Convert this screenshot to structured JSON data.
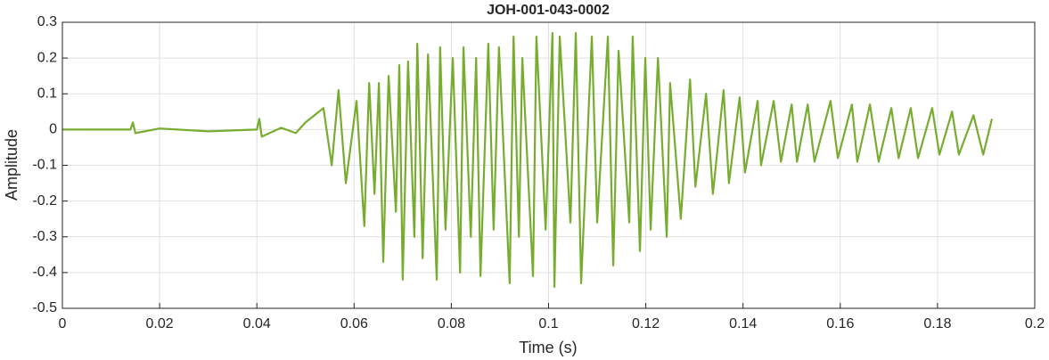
{
  "chart_data": {
    "type": "line",
    "title": "JOH-001-043-0002",
    "xlabel": "Time (s)",
    "ylabel": "Amplitude",
    "color": "#77ac30",
    "grid": true,
    "xlim": [
      0,
      0.2
    ],
    "xticks": [
      0,
      0.02,
      0.04,
      0.06,
      0.08,
      0.1,
      0.12,
      0.14,
      0.16,
      0.18,
      0.2
    ],
    "ylim": [
      -0.5,
      0.3
    ],
    "yticks": [
      -0.5,
      -0.4,
      -0.3,
      -0.2,
      -0.1,
      0,
      0.1,
      0.2,
      0.3
    ],
    "x": [
      0,
      0.014,
      0.0145,
      0.015,
      0.02,
      0.03,
      0.04,
      0.0405,
      0.041,
      0.045,
      0.048,
      0.05,
      0.0537,
      0.0554,
      0.0568,
      0.0583,
      0.0605,
      0.0621,
      0.0631,
      0.0642,
      0.0651,
      0.066,
      0.0671,
      0.0686,
      0.0693,
      0.07,
      0.0711,
      0.0724,
      0.073,
      0.0741,
      0.0752,
      0.077,
      0.0777,
      0.0788,
      0.0803,
      0.0818,
      0.0825,
      0.084,
      0.0851,
      0.086,
      0.0876,
      0.0887,
      0.0898,
      0.092,
      0.0928,
      0.0939,
      0.0946,
      0.0968,
      0.0975,
      0.0994,
      0.1008,
      0.1012,
      0.1023,
      0.1045,
      0.1056,
      0.1067,
      0.1089,
      0.11,
      0.1122,
      0.1133,
      0.1144,
      0.1166,
      0.1173,
      0.1188,
      0.1199,
      0.121,
      0.1225,
      0.1243,
      0.125,
      0.1272,
      0.1291,
      0.1302,
      0.1324,
      0.1338,
      0.136,
      0.1371,
      0.1393,
      0.1404,
      0.143,
      0.1437,
      0.1463,
      0.1478,
      0.15,
      0.1511,
      0.1533,
      0.1547,
      0.158,
      0.1595,
      0.1624,
      0.1635,
      0.1661,
      0.1679,
      0.1705,
      0.172,
      0.1745,
      0.176,
      0.1789,
      0.1804,
      0.183,
      0.1844,
      0.1874,
      0.1894,
      0.1912
    ],
    "values": [
      0,
      0,
      0.02,
      -0.01,
      0.003,
      -0.005,
      0,
      0.03,
      -0.02,
      0.005,
      -0.01,
      0.02,
      0.06,
      -0.1,
      0.11,
      -0.15,
      0.08,
      -0.27,
      0.13,
      -0.18,
      0.13,
      -0.37,
      0.15,
      -0.23,
      0.18,
      -0.42,
      0.19,
      -0.3,
      0.24,
      -0.36,
      0.21,
      -0.42,
      0.23,
      -0.28,
      0.2,
      -0.4,
      0.23,
      -0.3,
      0.2,
      -0.41,
      0.24,
      -0.28,
      0.23,
      -0.43,
      0.26,
      -0.3,
      0.2,
      -0.41,
      0.26,
      -0.28,
      0.27,
      -0.44,
      0.26,
      -0.26,
      0.27,
      -0.43,
      0.26,
      -0.26,
      0.26,
      -0.38,
      0.22,
      -0.26,
      0.26,
      -0.34,
      0.2,
      -0.28,
      0.2,
      -0.3,
      0.13,
      -0.25,
      0.14,
      -0.16,
      0.1,
      -0.18,
      0.11,
      -0.15,
      0.09,
      -0.12,
      0.08,
      -0.1,
      0.08,
      -0.09,
      0.07,
      -0.09,
      0.07,
      -0.09,
      0.08,
      -0.08,
      0.07,
      -0.09,
      0.07,
      -0.09,
      0.06,
      -0.08,
      0.06,
      -0.08,
      0.06,
      -0.07,
      0.05,
      -0.07,
      0.04,
      -0.07,
      0.03
    ]
  }
}
